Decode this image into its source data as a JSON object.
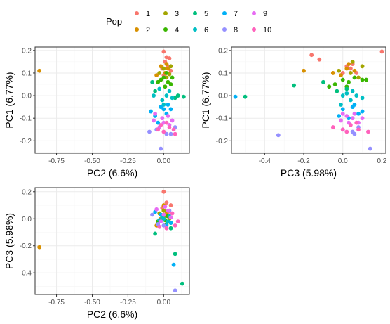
{
  "legend": {
    "title": "Pop",
    "items": [
      {
        "label": "1",
        "color": "#F8766D"
      },
      {
        "label": "2",
        "color": "#D89000"
      },
      {
        "label": "3",
        "color": "#A3A500"
      },
      {
        "label": "4",
        "color": "#39B600"
      },
      {
        "label": "5",
        "color": "#00BF7D"
      },
      {
        "label": "6",
        "color": "#00BFC4"
      },
      {
        "label": "7",
        "color": "#00B0F6"
      },
      {
        "label": "8",
        "color": "#9590FF"
      },
      {
        "label": "9",
        "color": "#E76BF3"
      },
      {
        "label": "10",
        "color": "#FF62BC"
      }
    ]
  },
  "chart_data": [
    {
      "type": "scatter",
      "xlabel": "PC2 (6.6%)",
      "ylabel": "PC1 (6.77%)",
      "xlim": [
        -0.9,
        0.18
      ],
      "ylim": [
        -0.255,
        0.215
      ],
      "xticks": [
        -0.75,
        -0.5,
        -0.25,
        0.0
      ],
      "xtick_labels": [
        "-0.75",
        "-0.50",
        "-0.25",
        "0.00"
      ],
      "yticks": [
        -0.2,
        -0.1,
        0.0,
        0.1,
        0.2
      ],
      "ytick_labels": [
        "-0.2",
        "-0.1",
        "0.0",
        "0.1",
        "0.2"
      ],
      "grid": true,
      "series": [
        {
          "name": "1",
          "points": [
            [
              0.0,
              0.195
            ],
            [
              0.02,
              0.17
            ],
            [
              0.04,
              0.165
            ],
            [
              0.01,
              0.15
            ],
            [
              0.03,
              0.13
            ],
            [
              -0.01,
              0.12
            ],
            [
              0.05,
              0.11
            ],
            [
              0.0,
              0.09
            ]
          ]
        },
        {
          "name": "2",
          "points": [
            [
              -0.87,
              0.11
            ],
            [
              -0.05,
              0.09
            ],
            [
              0.02,
              0.14
            ],
            [
              0.01,
              0.1
            ],
            [
              0.03,
              0.12
            ],
            [
              -0.02,
              0.13
            ]
          ]
        },
        {
          "name": "3",
          "points": [
            [
              0.0,
              0.12
            ],
            [
              0.04,
              0.095
            ],
            [
              -0.03,
              0.1
            ],
            [
              0.02,
              0.08
            ],
            [
              0.05,
              0.13
            ]
          ]
        },
        {
          "name": "4",
          "points": [
            [
              0.0,
              0.08
            ],
            [
              0.03,
              0.06
            ],
            [
              -0.02,
              0.07
            ],
            [
              0.05,
              0.05
            ],
            [
              0.02,
              0.1
            ],
            [
              -0.04,
              0.06
            ],
            [
              0.06,
              0.08
            ],
            [
              0.01,
              0.04
            ]
          ]
        },
        {
          "name": "5",
          "points": [
            [
              -0.08,
              0.06
            ],
            [
              -0.06,
              0.02
            ],
            [
              0.14,
              -0.005
            ],
            [
              0.1,
              0.0
            ],
            [
              0.08,
              -0.01
            ]
          ]
        },
        {
          "name": "6",
          "points": [
            [
              -0.07,
              0.0
            ],
            [
              -0.01,
              -0.02
            ],
            [
              0.02,
              0.0
            ],
            [
              0.04,
              0.02
            ],
            [
              -0.03,
              0.03
            ],
            [
              0.06,
              -0.01
            ],
            [
              0.0,
              -0.04
            ]
          ]
        },
        {
          "name": "7",
          "points": [
            [
              -0.09,
              -0.07
            ],
            [
              -0.06,
              -0.09
            ],
            [
              0.0,
              -0.06
            ],
            [
              0.03,
              -0.04
            ],
            [
              -0.04,
              -0.12
            ],
            [
              0.02,
              -0.08
            ],
            [
              0.05,
              -0.06
            ],
            [
              -0.02,
              -0.05
            ]
          ]
        },
        {
          "name": "8",
          "points": [
            [
              -0.1,
              -0.16
            ],
            [
              -0.02,
              -0.235
            ],
            [
              0.05,
              -0.17
            ],
            [
              0.08,
              -0.14
            ],
            [
              -0.05,
              -0.15
            ],
            [
              0.02,
              -0.17
            ]
          ]
        },
        {
          "name": "9",
          "points": [
            [
              -0.06,
              -0.08
            ],
            [
              -0.01,
              -0.1
            ],
            [
              0.03,
              -0.09
            ],
            [
              0.0,
              -0.12
            ],
            [
              0.06,
              -0.11
            ],
            [
              -0.03,
              -0.14
            ],
            [
              0.04,
              -0.13
            ],
            [
              -0.07,
              -0.11
            ]
          ]
        },
        {
          "name": "10",
          "points": [
            [
              -0.04,
              -0.15
            ],
            [
              0.0,
              -0.16
            ],
            [
              0.04,
              -0.14
            ],
            [
              0.07,
              -0.15
            ],
            [
              0.08,
              -0.17
            ],
            [
              -0.02,
              -0.13
            ],
            [
              0.02,
              -0.12
            ]
          ]
        }
      ]
    },
    {
      "type": "scatter",
      "xlabel": "PC3 (5.98%)",
      "ylabel": "PC1 (6.77%)",
      "xlim": [
        -0.57,
        0.22
      ],
      "ylim": [
        -0.255,
        0.215
      ],
      "xticks": [
        -0.4,
        -0.2,
        0.0,
        0.2
      ],
      "xtick_labels": [
        "-0.4",
        "-0.2",
        "0.0",
        "0.2"
      ],
      "yticks": [
        -0.2,
        -0.1,
        0.0,
        0.1,
        0.2
      ],
      "ytick_labels": [
        "-0.2",
        "-0.1",
        "0.0",
        "0.1",
        "0.2"
      ],
      "grid": true,
      "series": [
        {
          "name": "1",
          "points": [
            [
              -0.16,
              0.18
            ],
            [
              -0.12,
              0.16
            ],
            [
              0.2,
              0.195
            ],
            [
              0.05,
              0.14
            ],
            [
              0.04,
              0.12
            ],
            [
              0.0,
              0.1
            ],
            [
              0.07,
              0.1
            ],
            [
              0.02,
              0.13
            ]
          ]
        },
        {
          "name": "2",
          "points": [
            [
              -0.2,
              0.11
            ],
            [
              -0.05,
              0.1
            ],
            [
              0.02,
              0.12
            ],
            [
              0.03,
              0.14
            ],
            [
              0.06,
              0.11
            ],
            [
              -0.01,
              0.09
            ]
          ]
        },
        {
          "name": "3",
          "points": [
            [
              0.05,
              0.15
            ],
            [
              -0.02,
              0.11
            ],
            [
              0.04,
              0.1
            ],
            [
              0.08,
              0.08
            ],
            [
              0.1,
              0.13
            ]
          ]
        },
        {
          "name": "4",
          "points": [
            [
              -0.07,
              0.04
            ],
            [
              -0.04,
              0.05
            ],
            [
              0.0,
              0.07
            ],
            [
              0.03,
              0.06
            ],
            [
              0.06,
              0.08
            ],
            [
              0.1,
              0.07
            ],
            [
              0.12,
              0.07
            ],
            [
              0.02,
              0.04
            ]
          ]
        },
        {
          "name": "5",
          "points": [
            [
              -0.5,
              -0.005
            ],
            [
              -0.25,
              0.045
            ],
            [
              -0.1,
              0.06
            ],
            [
              0.02,
              0.03
            ],
            [
              -0.03,
              0.02
            ]
          ]
        },
        {
          "name": "6",
          "points": [
            [
              0.0,
              0.0
            ],
            [
              0.04,
              -0.02
            ],
            [
              0.07,
              0.0
            ],
            [
              0.1,
              -0.01
            ],
            [
              -0.01,
              -0.04
            ],
            [
              0.05,
              0.02
            ],
            [
              0.02,
              0.01
            ]
          ]
        },
        {
          "name": "7",
          "points": [
            [
              -0.55,
              -0.005
            ],
            [
              0.0,
              -0.06
            ],
            [
              0.05,
              -0.05
            ],
            [
              0.08,
              -0.08
            ],
            [
              0.1,
              -0.07
            ],
            [
              -0.02,
              -0.09
            ],
            [
              0.03,
              -0.1
            ],
            [
              0.06,
              -0.04
            ]
          ]
        },
        {
          "name": "8",
          "points": [
            [
              -0.33,
              -0.175
            ],
            [
              0.14,
              -0.235
            ],
            [
              0.05,
              -0.16
            ],
            [
              0.06,
              -0.17
            ],
            [
              0.0,
              -0.15
            ],
            [
              0.08,
              -0.14
            ]
          ]
        },
        {
          "name": "9",
          "points": [
            [
              0.0,
              -0.08
            ],
            [
              0.02,
              -0.09
            ],
            [
              0.05,
              -0.1
            ],
            [
              0.08,
              -0.12
            ],
            [
              0.1,
              -0.1
            ],
            [
              0.03,
              -0.12
            ],
            [
              -0.01,
              -0.11
            ],
            [
              0.06,
              -0.08
            ]
          ]
        },
        {
          "name": "10",
          "points": [
            [
              -0.05,
              -0.14
            ],
            [
              0.0,
              -0.15
            ],
            [
              0.04,
              -0.13
            ],
            [
              0.08,
              -0.15
            ],
            [
              0.13,
              -0.16
            ],
            [
              0.02,
              -0.16
            ],
            [
              0.07,
              -0.12
            ]
          ]
        }
      ]
    },
    {
      "type": "scatter",
      "xlabel": "PC2 (6.6%)",
      "ylabel": "PC3 (5.98%)",
      "xlim": [
        -0.9,
        0.18
      ],
      "ylim": [
        -0.56,
        0.23
      ],
      "xticks": [
        -0.75,
        -0.5,
        -0.25,
        0.0
      ],
      "xtick_labels": [
        "-0.75",
        "-0.50",
        "-0.25",
        "0.00"
      ],
      "yticks": [
        -0.4,
        -0.2,
        0.0,
        0.2
      ],
      "ytick_labels": [
        "-0.4",
        "-0.2",
        "0.0",
        "0.2"
      ],
      "grid": true,
      "series": [
        {
          "name": "1",
          "points": [
            [
              0.0,
              0.2
            ],
            [
              0.02,
              0.12
            ],
            [
              -0.01,
              0.08
            ],
            [
              0.03,
              0.05
            ],
            [
              0.05,
              0.1
            ],
            [
              0.01,
              0.02
            ]
          ]
        },
        {
          "name": "2",
          "points": [
            [
              -0.87,
              -0.21
            ],
            [
              -0.05,
              -0.05
            ],
            [
              0.0,
              0.1
            ],
            [
              0.02,
              0.05
            ],
            [
              -0.02,
              0.0
            ]
          ]
        },
        {
          "name": "3",
          "points": [
            [
              0.0,
              0.06
            ],
            [
              0.02,
              0.02
            ],
            [
              -0.03,
              0.04
            ],
            [
              0.04,
              0.0
            ]
          ]
        },
        {
          "name": "4",
          "points": [
            [
              -0.02,
              0.03
            ],
            [
              0.01,
              -0.01
            ],
            [
              0.03,
              0.02
            ],
            [
              -0.04,
              -0.02
            ],
            [
              0.05,
              -0.03
            ],
            [
              0.02,
              -0.04
            ]
          ]
        },
        {
          "name": "5",
          "points": [
            [
              -0.06,
              -0.11
            ],
            [
              0.05,
              -0.07
            ],
            [
              0.08,
              -0.26
            ],
            [
              0.13,
              -0.48
            ]
          ]
        },
        {
          "name": "6",
          "points": [
            [
              0.0,
              0.0
            ],
            [
              0.03,
              -0.02
            ],
            [
              -0.01,
              0.01
            ],
            [
              0.04,
              0.02
            ],
            [
              -0.03,
              -0.01
            ]
          ]
        },
        {
          "name": "7",
          "points": [
            [
              -0.06,
              0.05
            ],
            [
              0.02,
              -0.05
            ],
            [
              0.07,
              -0.34
            ],
            [
              0.05,
              -0.03
            ],
            [
              -0.02,
              0.03
            ]
          ]
        },
        {
          "name": "8",
          "points": [
            [
              -0.08,
              0.03
            ],
            [
              0.08,
              -0.53
            ],
            [
              0.0,
              -0.05
            ],
            [
              0.04,
              0.06
            ],
            [
              -0.04,
              -0.04
            ]
          ]
        },
        {
          "name": "9",
          "points": [
            [
              -0.05,
              0.07
            ],
            [
              0.0,
              0.03
            ],
            [
              0.03,
              0.06
            ],
            [
              -0.02,
              -0.02
            ],
            [
              0.05,
              0.01
            ],
            [
              0.01,
              0.09
            ]
          ]
        },
        {
          "name": "10",
          "points": [
            [
              0.08,
              -0.05
            ],
            [
              -0.03,
              -0.06
            ],
            [
              0.06,
              0.04
            ],
            [
              0.02,
              -0.07
            ],
            [
              0.1,
              -0.02
            ]
          ]
        }
      ]
    }
  ]
}
